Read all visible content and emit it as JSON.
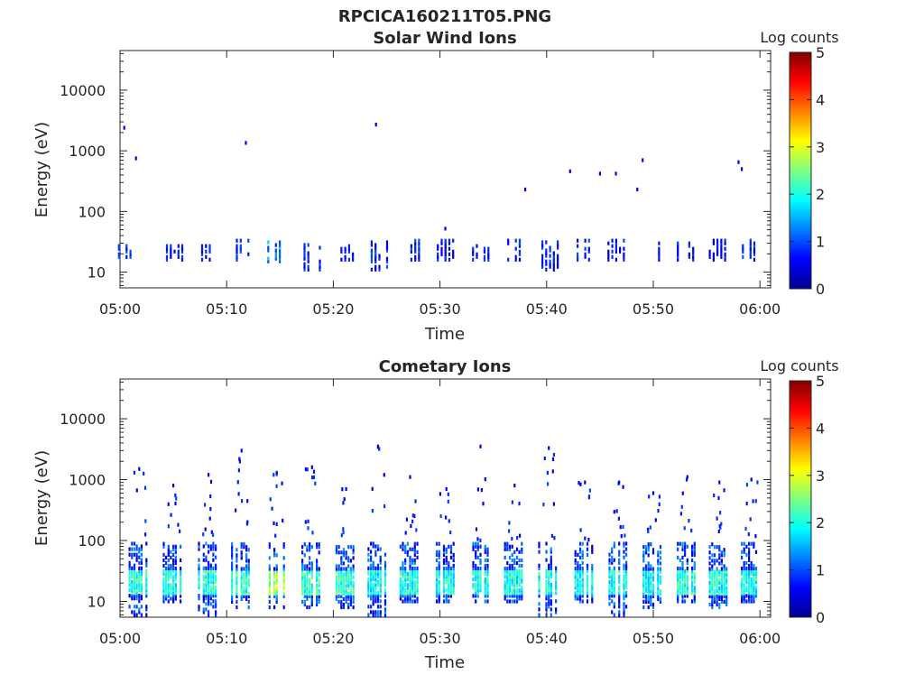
{
  "figure_title": "RPCICA160211T05.PNG",
  "colorbar": {
    "label": "Log counts",
    "ticks": [
      "0",
      "1",
      "2",
      "3",
      "4",
      "5"
    ],
    "range": [
      0,
      5
    ],
    "colormap": "jet"
  },
  "panel_1": {
    "title": "Solar Wind Ions",
    "ylabel": "Energy (eV)",
    "xlabel": "Time",
    "yticks": [
      "10",
      "100",
      "1000",
      "10000"
    ],
    "xticks": [
      "05:00",
      "05:10",
      "05:20",
      "05:30",
      "05:40",
      "05:50",
      "06:00"
    ]
  },
  "panel_2": {
    "title": "Cometary Ions",
    "ylabel": "Energy (eV)",
    "xlabel": "Time",
    "yticks": [
      "10",
      "100",
      "1000",
      "10000"
    ],
    "xticks": [
      "05:00",
      "05:10",
      "05:20",
      "05:30",
      "05:40",
      "05:50",
      "06:00"
    ]
  },
  "chart_data": [
    {
      "type": "heatmap",
      "title": "Solar Wind Ions",
      "xlabel": "Time",
      "ylabel": "Energy (eV)",
      "x_unit": "minutes after 05:00",
      "xlim": [
        0,
        61
      ],
      "ylim": [
        5.5,
        45000
      ],
      "yscale": "log",
      "color_range": [
        0,
        5
      ],
      "color_label": "Log counts",
      "bursts": [
        {
          "t": 0.8,
          "e_lo": 16,
          "e_hi": 28,
          "v": 0.8
        },
        {
          "t": 5.3,
          "e_lo": 16,
          "e_hi": 28,
          "v": 0.7
        },
        {
          "t": 8.6,
          "e_lo": 16,
          "e_hi": 28,
          "v": 0.7
        },
        {
          "t": 11.5,
          "e_lo": 16,
          "e_hi": 32,
          "v": 0.8
        },
        {
          "t": 14.8,
          "e_lo": 15,
          "e_hi": 32,
          "v": 1.2
        },
        {
          "t": 18.2,
          "e_lo": 11,
          "e_hi": 28,
          "v": 0.8
        },
        {
          "t": 21.3,
          "e_lo": 16,
          "e_hi": 28,
          "v": 0.7
        },
        {
          "t": 24.5,
          "e_lo": 11,
          "e_hi": 32,
          "v": 0.8
        },
        {
          "t": 27.5,
          "e_lo": 16,
          "e_hi": 32,
          "v": 0.8
        },
        {
          "t": 30.7,
          "e_lo": 16,
          "e_hi": 32,
          "v": 0.7
        },
        {
          "t": 34.0,
          "e_lo": 16,
          "e_hi": 28,
          "v": 0.7
        },
        {
          "t": 37.3,
          "e_lo": 16,
          "e_hi": 32,
          "v": 0.7
        },
        {
          "t": 40.5,
          "e_lo": 11,
          "e_hi": 32,
          "v": 0.7
        },
        {
          "t": 43.8,
          "e_lo": 16,
          "e_hi": 32,
          "v": 0.8
        },
        {
          "t": 46.7,
          "e_lo": 16,
          "e_hi": 32,
          "v": 0.7
        },
        {
          "t": 50.0,
          "e_lo": 16,
          "e_hi": 32,
          "v": 0.7
        },
        {
          "t": 53.2,
          "e_lo": 16,
          "e_hi": 32,
          "v": 0.7
        },
        {
          "t": 56.2,
          "e_lo": 16,
          "e_hi": 32,
          "v": 0.6
        },
        {
          "t": 59.3,
          "e_lo": 16,
          "e_hi": 32,
          "v": 0.8
        }
      ],
      "sparse_points": [
        {
          "t": 0.4,
          "e": 2400
        },
        {
          "t": 1.5,
          "e": 750
        },
        {
          "t": 11.8,
          "e": 1350
        },
        {
          "t": 24.0,
          "e": 2700
        },
        {
          "t": 30.5,
          "e": 52
        },
        {
          "t": 38.0,
          "e": 230
        },
        {
          "t": 42.2,
          "e": 460
        },
        {
          "t": 45.0,
          "e": 420
        },
        {
          "t": 46.5,
          "e": 420
        },
        {
          "t": 48.5,
          "e": 230
        },
        {
          "t": 49.0,
          "e": 700
        },
        {
          "t": 58.0,
          "e": 650
        },
        {
          "t": 58.3,
          "e": 500
        }
      ]
    },
    {
      "type": "heatmap",
      "title": "Cometary Ions",
      "xlabel": "Time",
      "ylabel": "Energy (eV)",
      "x_unit": "minutes after 05:00",
      "xlim": [
        0,
        61
      ],
      "ylim": [
        5.5,
        45000
      ],
      "yscale": "log",
      "color_range": [
        0,
        5
      ],
      "color_label": "Log counts",
      "bursts": [
        {
          "t": 1.8,
          "e_lo": 6,
          "e_hi": 90,
          "v_core": 2.0,
          "tail_max": 1500
        },
        {
          "t": 5.0,
          "e_lo": 10,
          "e_hi": 90,
          "v_core": 1.9,
          "tail_max": 800
        },
        {
          "t": 8.3,
          "e_lo": 6,
          "e_hi": 90,
          "v_core": 2.0,
          "tail_max": 1200
        },
        {
          "t": 11.4,
          "e_lo": 8,
          "e_hi": 90,
          "v_core": 2.0,
          "tail_max": 3000
        },
        {
          "t": 14.7,
          "e_lo": 8,
          "e_hi": 90,
          "v_core": 2.5,
          "tail_max": 1300
        },
        {
          "t": 18.0,
          "e_lo": 8,
          "e_hi": 90,
          "v_core": 2.1,
          "tail_max": 1600
        },
        {
          "t": 21.2,
          "e_lo": 8,
          "e_hi": 80,
          "v_core": 2.0,
          "tail_max": 700
        },
        {
          "t": 24.2,
          "e_lo": 6,
          "e_hi": 90,
          "v_core": 1.8,
          "tail_max": 3500
        },
        {
          "t": 27.2,
          "e_lo": 10,
          "e_hi": 90,
          "v_core": 1.9,
          "tail_max": 1100
        },
        {
          "t": 30.6,
          "e_lo": 10,
          "e_hi": 90,
          "v_core": 1.9,
          "tail_max": 700
        },
        {
          "t": 33.8,
          "e_lo": 10,
          "e_hi": 90,
          "v_core": 1.9,
          "tail_max": 3500
        },
        {
          "t": 37.0,
          "e_lo": 10,
          "e_hi": 90,
          "v_core": 1.9,
          "tail_max": 800
        },
        {
          "t": 40.2,
          "e_lo": 6,
          "e_hi": 90,
          "v_core": 1.9,
          "tail_max": 3300
        },
        {
          "t": 43.6,
          "e_lo": 10,
          "e_hi": 90,
          "v_core": 1.9,
          "tail_max": 900
        },
        {
          "t": 46.8,
          "e_lo": 6,
          "e_hi": 90,
          "v_core": 1.9,
          "tail_max": 900
        },
        {
          "t": 50.0,
          "e_lo": 8,
          "e_hi": 90,
          "v_core": 1.9,
          "tail_max": 600
        },
        {
          "t": 53.2,
          "e_lo": 10,
          "e_hi": 90,
          "v_core": 2.0,
          "tail_max": 1100
        },
        {
          "t": 56.2,
          "e_lo": 8,
          "e_hi": 90,
          "v_core": 1.9,
          "tail_max": 900
        },
        {
          "t": 59.2,
          "e_lo": 10,
          "e_hi": 90,
          "v_core": 1.9,
          "tail_max": 1000
        }
      ]
    }
  ]
}
